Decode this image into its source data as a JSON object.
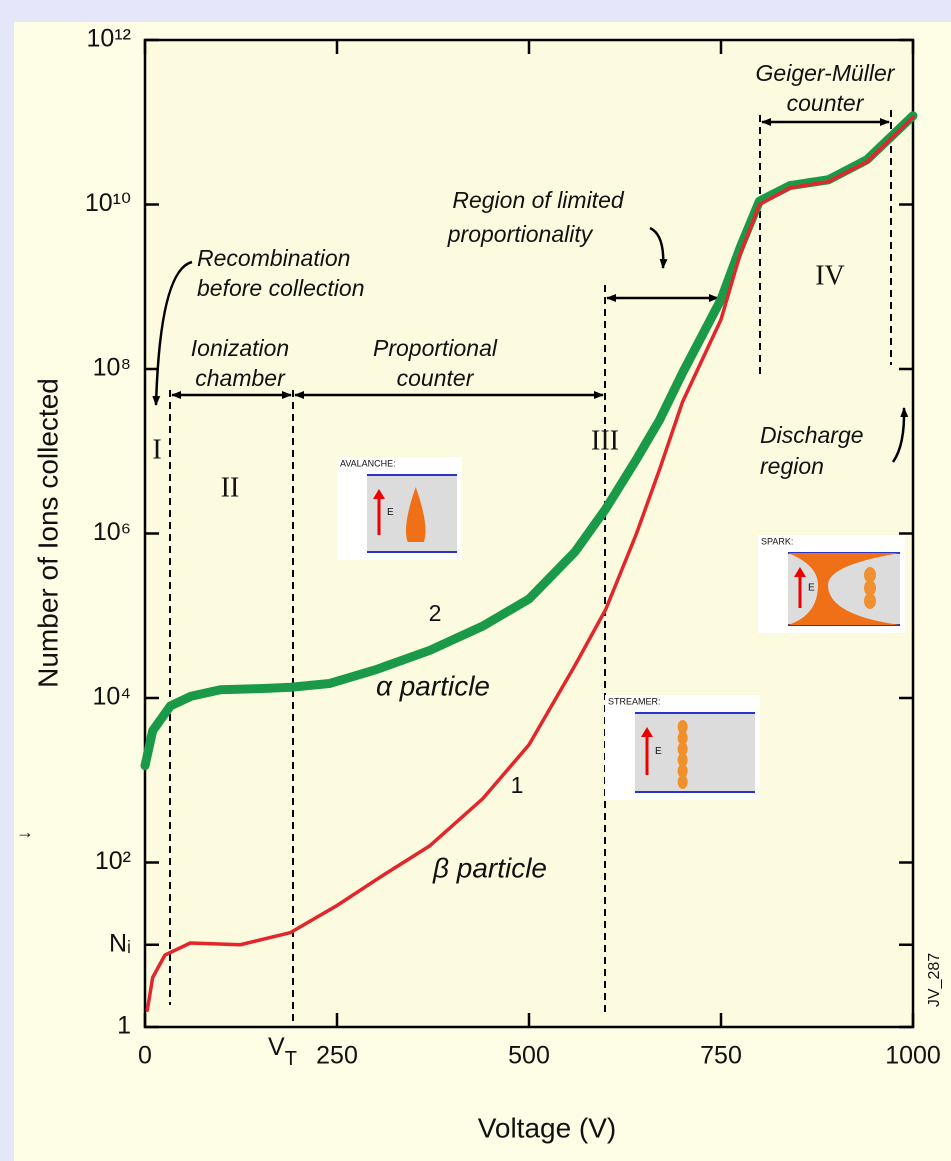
{
  "chart_data": {
    "type": "line",
    "log_y": true,
    "xlabel": "Voltage (V)",
    "ylabel": "Number of Ions collected",
    "xlim": [
      0,
      1000
    ],
    "ylim": [
      1,
      1000000000000
    ],
    "xticks": [
      0,
      250,
      500,
      750,
      1000
    ],
    "yticks": [
      1,
      {
        "value": 10,
        "label": "Nᵢ"
      },
      {
        "value": 100,
        "label": "10²"
      },
      {
        "value": 10000,
        "label": "10⁴"
      },
      {
        "value": 1000000,
        "label": "10⁶"
      },
      {
        "value": 100000000,
        "label": "10⁸"
      },
      {
        "value": 10000000000,
        "label": "10¹⁰"
      },
      {
        "value": 1000000000000,
        "label": "10¹²"
      }
    ],
    "series": [
      {
        "name": "α particle",
        "curve_label": "2",
        "color": "#1a9a48",
        "x": [
          0,
          10,
          33,
          60,
          98,
          150,
          190,
          240,
          300,
          371,
          440,
          500,
          560,
          600,
          640,
          670,
          700,
          750,
          775,
          800,
          840,
          890,
          940,
          1000
        ],
        "values": [
          1500,
          4000,
          8000,
          10500,
          12600,
          13000,
          13500,
          15000,
          22000,
          38000,
          75000,
          160000,
          600000,
          2000000,
          8000000,
          24000000,
          90000000,
          700000000,
          3000000000,
          11000000000,
          17000000000,
          20000000000,
          35000000000,
          120000000000
        ]
      },
      {
        "name": "β particle",
        "curve_label": "1",
        "color": "#e2262b",
        "x": [
          3,
          10,
          26,
          59,
          124,
          189,
          250,
          310,
          371,
          440,
          500,
          560,
          600,
          640,
          670,
          700,
          750,
          775,
          800,
          840,
          890,
          940,
          1000
        ],
        "values": [
          1.6,
          4,
          7.5,
          10.5,
          10,
          14,
          30,
          70,
          160,
          600,
          2700,
          25000,
          120000,
          1000000,
          6000000,
          40000000,
          400000000,
          2500000000,
          10000000000,
          16000000000,
          19000000000,
          33000000000,
          115000000000
        ]
      }
    ],
    "regions": [
      "I",
      "II",
      "III",
      "IV"
    ],
    "annotations": [
      "Geiger-Müller",
      "counter",
      "Region of limited",
      "proportionality",
      "Recombination",
      "before collection",
      "Ionization",
      "chamber",
      "Proportional",
      "counter",
      "Discharge",
      "region",
      "JV_287"
    ],
    "threshold": {
      "text": "V",
      "sub": "T"
    },
    "insets": [
      {
        "title": "AVALANCHE:",
        "field": "E"
      },
      {
        "title": "STREAMER:",
        "field": "E"
      },
      {
        "title": "SPARK:",
        "field": "E"
      }
    ],
    "margin_marker": "→"
  }
}
